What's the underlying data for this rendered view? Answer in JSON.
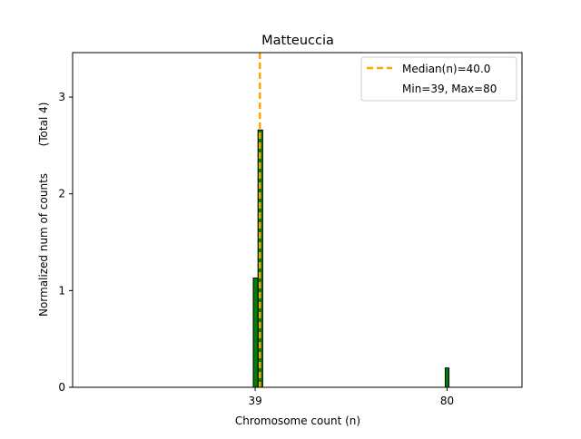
{
  "chart_data": {
    "type": "bar",
    "title": "Matteuccia",
    "xlabel": "Chromosome count (n)",
    "ylabel": "Normalized num of counts",
    "ylabel_note": "(Total 4)",
    "xlim": [
      0,
      96
    ],
    "ylim": [
      0,
      3.46
    ],
    "xticks": [
      39,
      80
    ],
    "yticks": [
      0,
      1,
      2,
      3
    ],
    "bars": [
      {
        "x0": 38.6,
        "x1": 39.6,
        "value": 1.13
      },
      {
        "x0": 39.6,
        "x1": 40.6,
        "value": 2.66
      },
      {
        "x0": 79.6,
        "x1": 80.4,
        "value": 0.2
      }
    ],
    "median": 40.0,
    "legend": {
      "position": "top-right",
      "entries": [
        "Median(n)=40.0",
        "Min=39, Max=80"
      ]
    },
    "colors": {
      "bar": "#008000",
      "median": "#FFA500"
    }
  }
}
